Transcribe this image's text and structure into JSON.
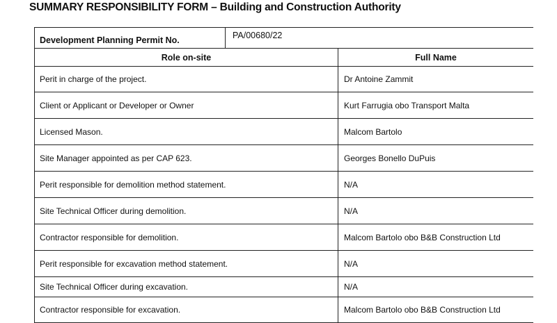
{
  "title": "SUMMARY RESPONSIBILITY FORM – Building and Construction Authority",
  "permit": {
    "label": "Development Planning Permit No.",
    "value": "PA/00680/22"
  },
  "headers": {
    "role": "Role on-site",
    "name": "Full Name"
  },
  "rows": [
    {
      "role": "Perit in charge of the project.",
      "name": "Dr Antoine Zammit"
    },
    {
      "role": "Client or Applicant or Developer or Owner",
      "name": "Kurt Farrugia obo Transport Malta"
    },
    {
      "role": "Licensed Mason.",
      "name": "Malcom Bartolo"
    },
    {
      "role": "Site Manager appointed as per CAP 623.",
      "name": "Georges Bonello DuPuis"
    },
    {
      "role": "Perit responsible for demolition method statement.",
      "name": "N/A"
    },
    {
      "role": "Site Technical Officer during demolition.",
      "name": "N/A"
    },
    {
      "role": "Contractor responsible for demolition.",
      "name": "Malcom Bartolo obo B&B Construction Ltd"
    },
    {
      "role": "Perit responsible for excavation method statement.",
      "name": "N/A"
    },
    {
      "role": "Site Technical Officer during excavation.",
      "name": "N/A"
    },
    {
      "role": "Contractor responsible for excavation.",
      "name": "Malcom Bartolo obo B&B Construction Ltd"
    }
  ]
}
